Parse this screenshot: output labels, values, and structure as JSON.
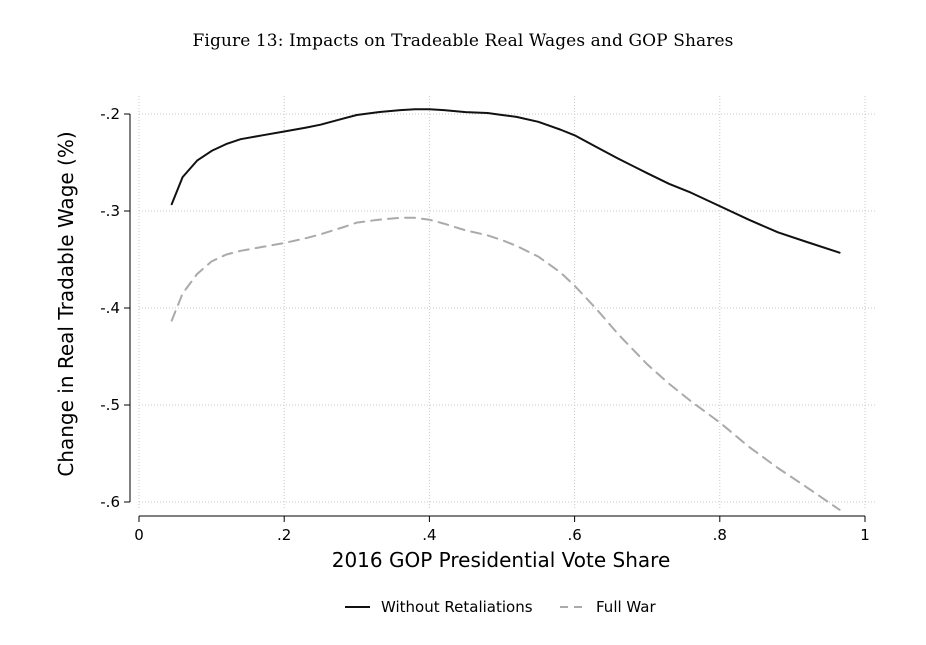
{
  "caption": "Figure 13: Impacts on Tradeable Real Wages and GOP Shares",
  "chart_data": {
    "type": "line",
    "title": "",
    "xlabel": "2016 GOP Presidential Vote Share",
    "ylabel": "Change in Real Tradable Wage (%)",
    "xlim": [
      0,
      1
    ],
    "ylim": [
      -0.6,
      -0.2
    ],
    "xticks": [
      0,
      0.2,
      0.4,
      0.6,
      0.8,
      1
    ],
    "xtick_labels": [
      "0",
      ".2",
      ".4",
      ".6",
      ".8",
      "1"
    ],
    "yticks": [
      -0.2,
      -0.3,
      -0.4,
      -0.5,
      -0.6
    ],
    "ytick_labels": [
      "-.2",
      "-.3",
      "-.4",
      "-.5",
      "-.6"
    ],
    "grid": true,
    "legend_position": "bottom",
    "series": [
      {
        "name": "Without Retaliations",
        "color": "#111111",
        "style": "solid",
        "x": [
          0.045,
          0.06,
          0.08,
          0.1,
          0.12,
          0.14,
          0.17,
          0.2,
          0.23,
          0.25,
          0.28,
          0.3,
          0.33,
          0.36,
          0.38,
          0.4,
          0.42,
          0.45,
          0.48,
          0.5,
          0.52,
          0.55,
          0.58,
          0.6,
          0.63,
          0.66,
          0.7,
          0.73,
          0.76,
          0.8,
          0.84,
          0.88,
          0.92,
          0.965
        ],
        "y": [
          -0.293,
          -0.265,
          -0.248,
          -0.238,
          -0.231,
          -0.226,
          -0.222,
          -0.218,
          -0.214,
          -0.211,
          -0.205,
          -0.201,
          -0.198,
          -0.196,
          -0.195,
          -0.195,
          -0.196,
          -0.198,
          -0.199,
          -0.201,
          -0.203,
          -0.208,
          -0.216,
          -0.222,
          -0.234,
          -0.246,
          -0.261,
          -0.272,
          -0.281,
          -0.295,
          -0.309,
          -0.322,
          -0.332,
          -0.343
        ]
      },
      {
        "name": "Full War",
        "color": "#aaaaaa",
        "style": "dashed",
        "x": [
          0.045,
          0.06,
          0.08,
          0.1,
          0.12,
          0.14,
          0.17,
          0.2,
          0.23,
          0.25,
          0.28,
          0.3,
          0.33,
          0.36,
          0.38,
          0.4,
          0.42,
          0.45,
          0.48,
          0.5,
          0.52,
          0.55,
          0.58,
          0.6,
          0.63,
          0.66,
          0.7,
          0.73,
          0.76,
          0.8,
          0.84,
          0.88,
          0.92,
          0.965
        ],
        "y": [
          -0.413,
          -0.385,
          -0.365,
          -0.352,
          -0.345,
          -0.341,
          -0.337,
          -0.333,
          -0.328,
          -0.324,
          -0.317,
          -0.312,
          -0.309,
          -0.307,
          -0.307,
          -0.309,
          -0.313,
          -0.32,
          -0.325,
          -0.33,
          -0.336,
          -0.347,
          -0.363,
          -0.377,
          -0.401,
          -0.427,
          -0.458,
          -0.478,
          -0.496,
          -0.518,
          -0.543,
          -0.565,
          -0.585,
          -0.608
        ]
      }
    ]
  }
}
